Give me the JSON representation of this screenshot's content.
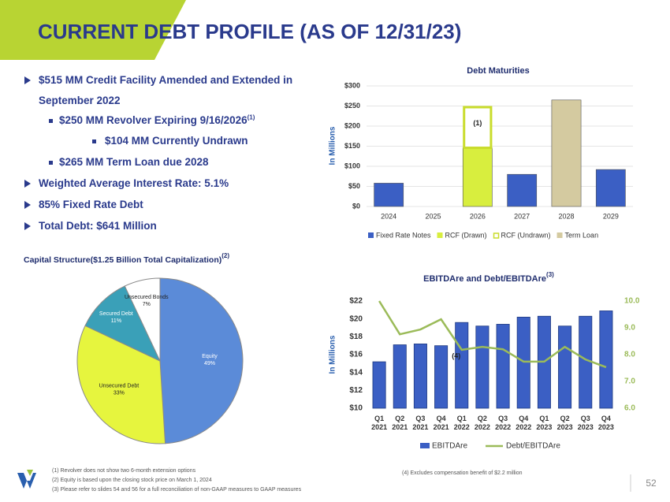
{
  "title": "CURRENT DEBT PROFILE (AS OF 12/31/23)",
  "bullets": [
    {
      "level": 1,
      "text": "$515 MM Credit Facility Amended and Extended in September 2022"
    },
    {
      "level": 2,
      "text": "$250 MM Revolver Expiring 9/16/2026",
      "note": "(1)"
    },
    {
      "level": 3,
      "text": "$104 MM Currently Undrawn"
    },
    {
      "level": 2,
      "text": "$265 MM Term Loan due 2028"
    },
    {
      "level": 1,
      "text": "Weighted Average Interest Rate: 5.1%"
    },
    {
      "level": 1,
      "text": "85% Fixed Rate Debt"
    },
    {
      "level": 1,
      "text": "Total Debt: $641 Million"
    }
  ],
  "footnotes": [
    "(1)    Revolver does not show two 6-month extension options",
    "(2)    Equity is based upon the closing stock price on March 1, 2024",
    "(3)    Please refer to slides 54 and 56 for a full reconciliation of non-GAAP measures to GAAP measures"
  ],
  "footnote_right": "(4) Excludes compensation benefit of $2.2 million",
  "page_number": 52,
  "chart_data": [
    {
      "type": "stacked_bar",
      "title": "Debt Maturities",
      "y_label": "In Millions",
      "categories": [
        "2024",
        "2025",
        "2026",
        "2027",
        "2028",
        "2029"
      ],
      "series": [
        {
          "name": "Fixed Rate Notes",
          "color": "#3b5fc4",
          "values": [
            58,
            null,
            null,
            80,
            null,
            92
          ]
        },
        {
          "name": "RCF (Drawn)",
          "color": "#d8ee3e",
          "values": [
            null,
            null,
            146,
            null,
            null,
            null
          ]
        },
        {
          "name": "RCF (Undrawn)",
          "color": "#c9dc2c",
          "outline": true,
          "values": [
            null,
            null,
            104,
            null,
            null,
            null
          ]
        },
        {
          "name": "Term Loan",
          "color": "#d4caa0",
          "values": [
            null,
            null,
            null,
            null,
            265,
            null
          ]
        }
      ],
      "ylim": [
        0,
        300
      ],
      "yticks": [
        {
          "value": 0,
          "label": "$0"
        },
        {
          "value": 50,
          "label": "$50"
        },
        {
          "value": 100,
          "label": "$100"
        },
        {
          "value": 150,
          "label": "$150"
        },
        {
          "value": 200,
          "label": "$200"
        },
        {
          "value": 250,
          "label": "$250"
        },
        {
          "value": 300,
          "label": "$300"
        }
      ],
      "grid": true,
      "legend": "bottom",
      "annotations": [
        {
          "text": "(1)",
          "x": "2026"
        }
      ]
    },
    {
      "type": "pie",
      "title": "Capital Structure($1.25 Billion Total Capitalization)",
      "title_note": "(2)",
      "categories": [
        "Equity",
        "Unsecured Debt",
        "Secured Debt",
        "Unsecured Bonds"
      ],
      "values": [
        49,
        33,
        11,
        7
      ],
      "value_labels": [
        "49%",
        "33%",
        "11%",
        "7%"
      ],
      "colors": [
        "#5b8bd8",
        "#e6f53e",
        "#3aa0b8",
        "#ffffff"
      ]
    },
    {
      "type": "bar_line",
      "title": "EBITDAre and Debt/EBITDAre",
      "title_note": "(3)",
      "y_label": "In Millions",
      "categories": [
        "Q1 2021",
        "Q2 2021",
        "Q3 2021",
        "Q4 2021",
        "Q1 2022",
        "Q2 2022",
        "Q3 2022",
        "Q4 2022",
        "Q1 2023",
        "Q2 2023",
        "Q3 2023",
        "Q4 2023"
      ],
      "series": [
        {
          "name": "EBITDAre",
          "type": "bar",
          "color": "#3b5fc4",
          "values": [
            15.2,
            17.1,
            17.2,
            17.0,
            19.6,
            19.2,
            19.4,
            20.2,
            20.3,
            19.2,
            20.3,
            20.9
          ]
        },
        {
          "name": "Debt/EBITDAre",
          "type": "line",
          "axis": "y2",
          "color": "#9bbb59",
          "values": [
            10.0,
            8.76,
            8.94,
            9.32,
            8.18,
            8.29,
            8.2,
            7.74,
            7.74,
            8.29,
            7.82,
            7.53
          ]
        }
      ],
      "ylim": [
        10,
        22
      ],
      "yticks": [
        {
          "value": 10,
          "label": "$10"
        },
        {
          "value": 12,
          "label": "$12"
        },
        {
          "value": 14,
          "label": "$14"
        },
        {
          "value": 16,
          "label": "$16"
        },
        {
          "value": 18,
          "label": "$18"
        },
        {
          "value": 20,
          "label": "$20"
        },
        {
          "value": 22,
          "label": "$22"
        }
      ],
      "y2lim": [
        6,
        10
      ],
      "y2ticks": [
        {
          "value": 6,
          "label": "6.0"
        },
        {
          "value": 7,
          "label": "7.0"
        },
        {
          "value": 8,
          "label": "8.0"
        },
        {
          "value": 9,
          "label": "9.0"
        },
        {
          "value": 10,
          "label": "10.0"
        }
      ],
      "legend": "bottom",
      "annotations": [
        {
          "text": "(4)",
          "x": "Q1 2022"
        }
      ]
    }
  ]
}
